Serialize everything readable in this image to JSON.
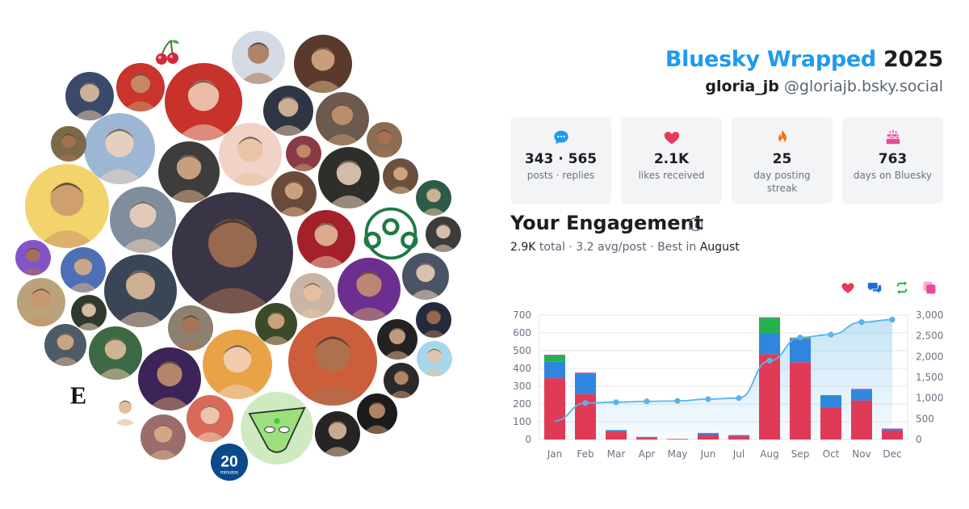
{
  "header": {
    "brand": "Bluesky Wrapped",
    "year": "2025",
    "display_name": "gloria_jb",
    "handle": "@gloriajb.bsky.social"
  },
  "stats": [
    {
      "icon": "speech-bubble-icon",
      "color": "#1d9bf0",
      "value": "343 · 565",
      "label": "posts · replies"
    },
    {
      "icon": "heart-icon",
      "color": "#e8395a",
      "value": "2.1K",
      "label": "likes received"
    },
    {
      "icon": "flame-icon",
      "color": "#f97316",
      "value": "25",
      "label": "day posting streak"
    },
    {
      "icon": "cake-icon",
      "color": "#ec4899",
      "value": "763",
      "label": "days on Bluesky"
    }
  ],
  "engagement": {
    "title": "Your Engagement",
    "total_value": "2.9K",
    "total_word": "total",
    "avg_text": "3.2 avg/post",
    "best_prefix": "Best in",
    "best_month": "August"
  },
  "legend": [
    {
      "icon": "heart-icon",
      "color": "#e8395a"
    },
    {
      "icon": "reply-bubbles-icon",
      "color": "#1d6fd6"
    },
    {
      "icon": "repost-icon",
      "color": "#22b04c"
    },
    {
      "icon": "quote-icon",
      "color": "#ec4899"
    }
  ],
  "chart_data": {
    "type": "bar",
    "stacked": true,
    "categories": [
      "Jan",
      "Feb",
      "Mar",
      "Apr",
      "May",
      "Jun",
      "Jul",
      "Aug",
      "Sep",
      "Oct",
      "Nov",
      "Dec"
    ],
    "series": [
      {
        "color": "#e03a57",
        "values": [
          345,
          255,
          45,
          10,
          3,
          25,
          20,
          480,
          435,
          180,
          220,
          50
        ]
      },
      {
        "color": "#2f86de",
        "values": [
          95,
          115,
          8,
          5,
          0,
          10,
          5,
          120,
          130,
          65,
          60,
          10
        ]
      },
      {
        "color": "#24b24f",
        "values": [
          35,
          5,
          0,
          0,
          0,
          0,
          0,
          85,
          5,
          3,
          3,
          0
        ]
      },
      {
        "color": "#ec4899",
        "values": [
          2,
          2,
          0,
          0,
          0,
          2,
          0,
          3,
          3,
          2,
          2,
          2
        ]
      }
    ],
    "cumulative": {
      "color": "#5ab4e8",
      "values": [
        450,
        880,
        900,
        920,
        930,
        975,
        1000,
        1900,
        2460,
        2530,
        2830,
        2890
      ]
    },
    "ylim_left": [
      0,
      700
    ],
    "yticks_left": [
      "0",
      "100",
      "200",
      "300",
      "400",
      "500",
      "600",
      "700"
    ],
    "ylim_right": [
      0,
      3000
    ],
    "yticks_right": [
      "0",
      "500",
      "1,000",
      "1,500",
      "2,000",
      "2,500",
      "3,000"
    ],
    "grid": true
  }
}
